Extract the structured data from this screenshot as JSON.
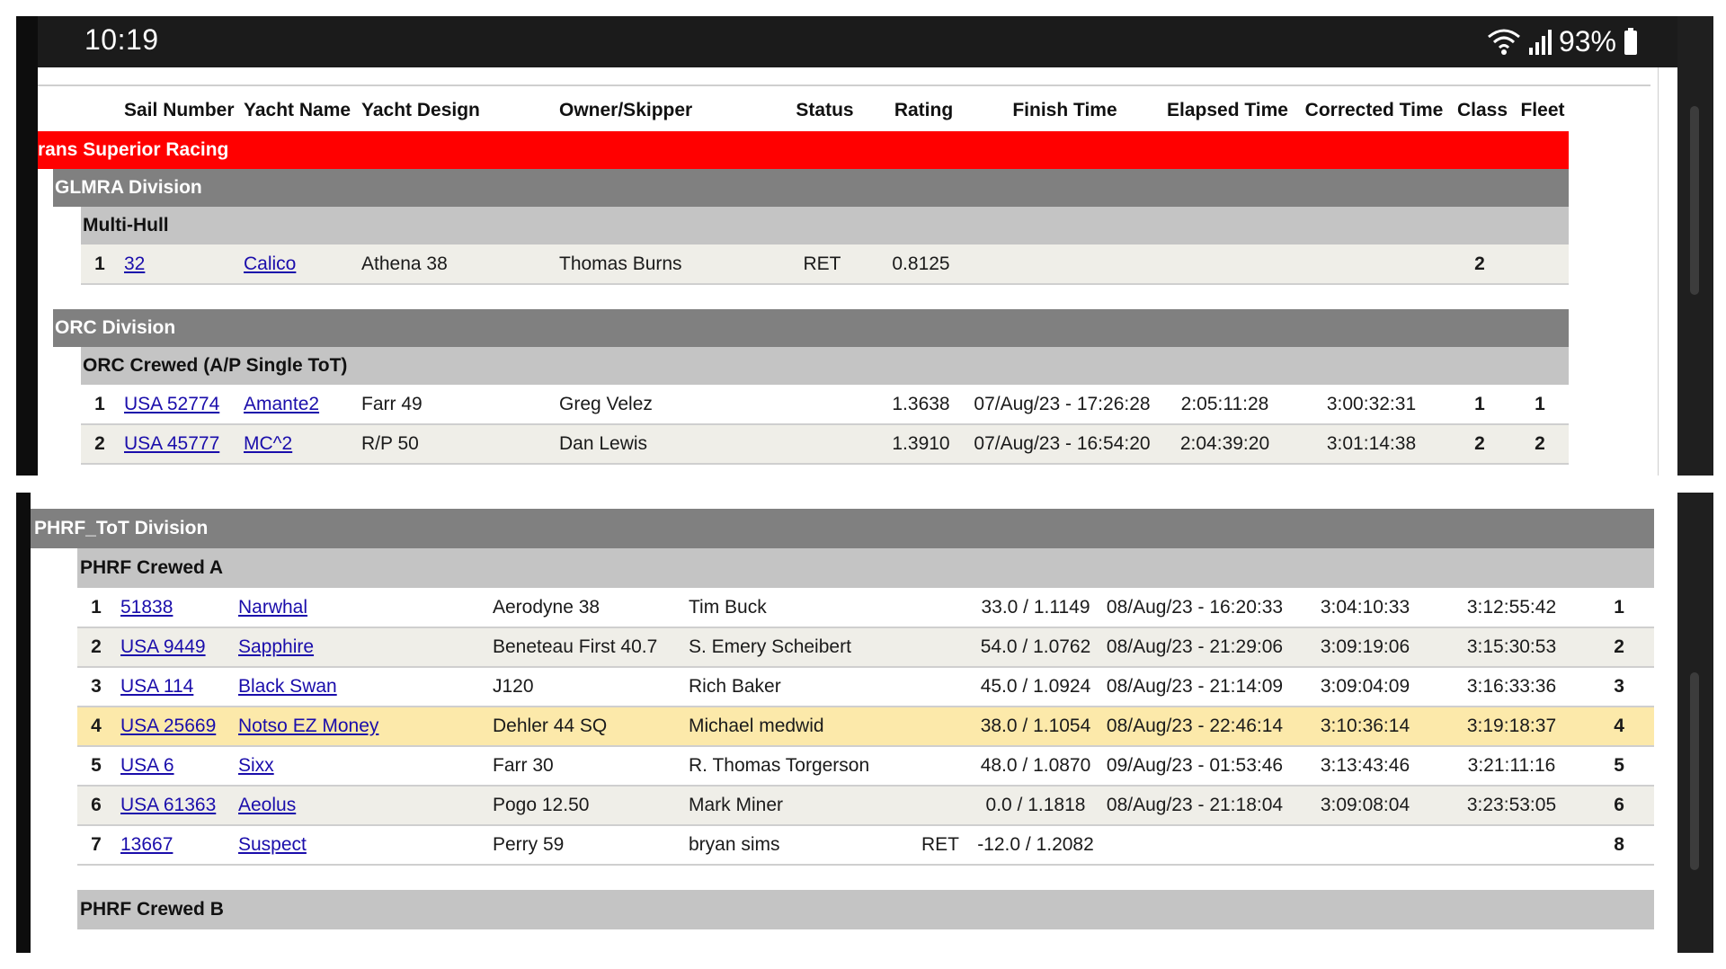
{
  "status_bar": {
    "time": "10:19",
    "battery": "93%",
    "icons": [
      "wifi-icon",
      "signal-icon",
      "battery-icon"
    ]
  },
  "columns": {
    "sail_number": "Sail Number",
    "yacht_name": "Yacht Name",
    "yacht_design": "Yacht Design",
    "owner": "Owner/Skipper",
    "status": "Status",
    "rating": "Rating",
    "finish_time": "Finish Time",
    "elapsed_time": "Elapsed Time",
    "corrected_time": "Corrected Time",
    "class": "Class",
    "fleet": "Fleet"
  },
  "race_name": "rans Superior Racing",
  "top_sections": [
    {
      "division": "GLMRA Division",
      "classes": [
        {
          "name": "Multi-Hull",
          "rows": [
            {
              "pos": "1",
              "sail": "32",
              "yacht": "Calico",
              "design": "Athena 38",
              "owner": "Thomas Burns",
              "status": "RET",
              "rating": "0.8125",
              "finish": "",
              "elapsed": "",
              "corrected": "",
              "class": "2",
              "fleet": ""
            }
          ]
        }
      ]
    },
    {
      "division": "ORC Division",
      "classes": [
        {
          "name": "ORC Crewed (A/P Single ToT)",
          "rows": [
            {
              "pos": "1",
              "sail": "USA 52774",
              "yacht": "Amante2",
              "design": "Farr 49",
              "owner": "Greg Velez",
              "status": "",
              "rating": "1.3638",
              "finish": "07/Aug/23 - 17:26:28",
              "elapsed": "2:05:11:28",
              "corrected": "3:00:32:31",
              "class": "1",
              "fleet": "1"
            },
            {
              "pos": "2",
              "sail": "USA 45777",
              "yacht": "MC^2",
              "design": "R/P 50",
              "owner": "Dan Lewis",
              "status": "",
              "rating": "1.3910",
              "finish": "07/Aug/23 - 16:54:20",
              "elapsed": "2:04:39:20",
              "corrected": "3:01:14:38",
              "class": "2",
              "fleet": "2"
            }
          ]
        }
      ]
    }
  ],
  "bottom_section": {
    "division": "PHRF_ToT Division",
    "class_a": "PHRF Crewed A",
    "rows": [
      {
        "pos": "1",
        "sail": "51838",
        "yacht": "Narwhal",
        "design": "Aerodyne 38",
        "owner": "Tim Buck",
        "status": "",
        "rating": "33.0 / 1.1149",
        "finish": "08/Aug/23 - 16:20:33",
        "elapsed": "3:04:10:33",
        "corrected": "3:12:55:42",
        "class": "1"
      },
      {
        "pos": "2",
        "sail": "USA 9449",
        "yacht": "Sapphire",
        "design": "Beneteau First 40.7",
        "owner": "S. Emery Scheibert",
        "status": "",
        "rating": "54.0 / 1.0762",
        "finish": "08/Aug/23 - 21:29:06",
        "elapsed": "3:09:19:06",
        "corrected": "3:15:30:53",
        "class": "2"
      },
      {
        "pos": "3",
        "sail": "USA 114",
        "yacht": "Black Swan",
        "design": "J120",
        "owner": "Rich Baker",
        "status": "",
        "rating": "45.0 / 1.0924",
        "finish": "08/Aug/23 - 21:14:09",
        "elapsed": "3:09:04:09",
        "corrected": "3:16:33:36",
        "class": "3"
      },
      {
        "pos": "4",
        "sail": "USA 25669",
        "yacht": "Notso EZ Money",
        "design": "Dehler 44 SQ",
        "owner": "Michael medwid",
        "status": "",
        "rating": "38.0 / 1.1054",
        "finish": "08/Aug/23 - 22:46:14",
        "elapsed": "3:10:36:14",
        "corrected": "3:19:18:37",
        "class": "4"
      },
      {
        "pos": "5",
        "sail": "USA 6",
        "yacht": "Sixx",
        "design": "Farr 30",
        "owner": "R. Thomas Torgerson",
        "status": "",
        "rating": "48.0 / 1.0870",
        "finish": "09/Aug/23 - 01:53:46",
        "elapsed": "3:13:43:46",
        "corrected": "3:21:11:16",
        "class": "5"
      },
      {
        "pos": "6",
        "sail": "USA 61363",
        "yacht": "Aeolus",
        "design": "Pogo 12.50",
        "owner": "Mark Miner",
        "status": "",
        "rating": "0.0 / 1.1818",
        "finish": "08/Aug/23 - 21:18:04",
        "elapsed": "3:09:08:04",
        "corrected": "3:23:53:05",
        "class": "6"
      },
      {
        "pos": "7",
        "sail": "13667",
        "yacht": "Suspect",
        "design": "Perry 59",
        "owner": "bryan sims",
        "status": "RET",
        "rating": "-12.0 / 1.2082",
        "finish": "",
        "elapsed": "",
        "corrected": "",
        "class": "8"
      }
    ],
    "class_b": "PHRF Crewed B"
  }
}
